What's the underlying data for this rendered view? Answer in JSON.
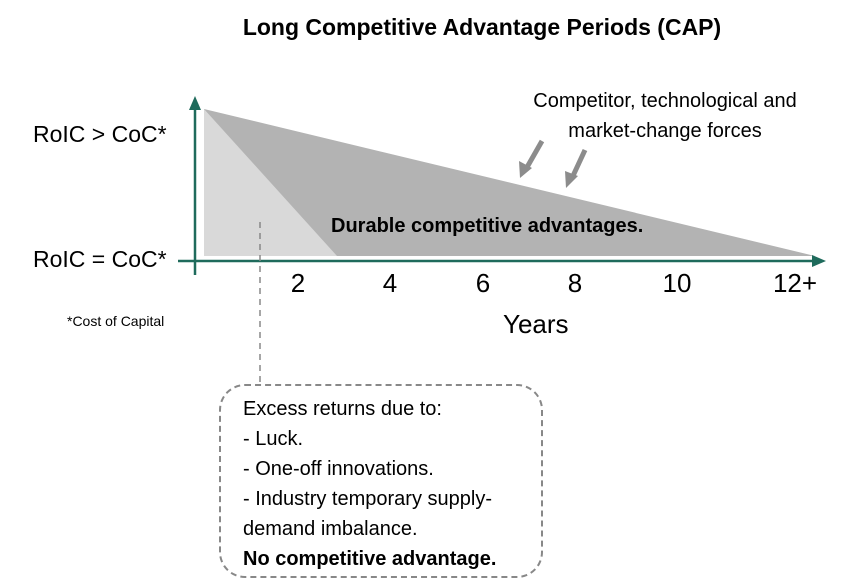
{
  "title": "Long Competitive Advantage Periods (CAP)",
  "y_axis": {
    "upper_label": "RoIC > CoC*",
    "lower_label": "RoIC = CoC*"
  },
  "x_axis": {
    "ticks": [
      "2",
      "4",
      "6",
      "8",
      "10",
      "12+"
    ],
    "label": "Years"
  },
  "footnote": "*Cost of Capital",
  "forces_label": {
    "line1": "Competitor, technological and",
    "line2": "market-change forces"
  },
  "durable_label": "Durable competitive advantages.",
  "note": {
    "heading": "Excess returns due to:",
    "items": [
      "- Luck.",
      "- One-off innovations.",
      "- Industry temporary supply-",
      "demand imbalance."
    ],
    "conclusion": "No competitive advantage."
  },
  "colors": {
    "axis": "#1f6b5c",
    "durable_region": "#b3b3b3",
    "temporary_region": "#d9d9d9",
    "arrow": "#8c8c8c",
    "dashed": "#888888"
  }
}
